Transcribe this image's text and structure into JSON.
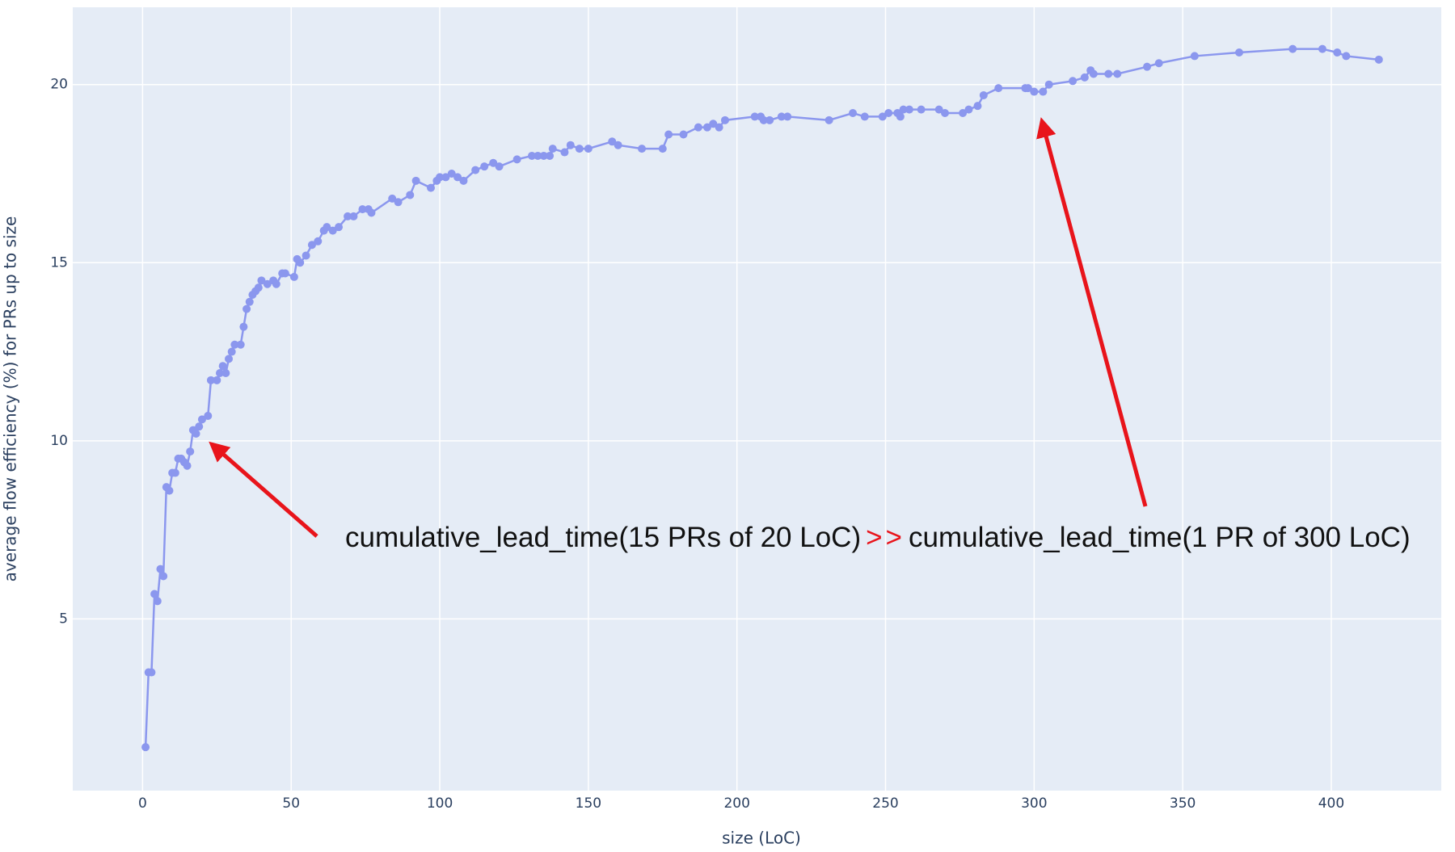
{
  "chart_data": {
    "type": "line",
    "x_label": "size (LoC)",
    "y_label": "average flow efficiency (%) for PRs up to size",
    "annotation": {
      "left": "cumulative_lead_time(15 PRs of 20 LoC)",
      "operator": ">>",
      "right": "cumulative_lead_time(1 PR of 300 LoC)"
    },
    "color": "#8b97ee",
    "x": [
      1,
      2,
      3,
      4,
      5,
      6,
      7,
      8,
      9,
      10,
      11,
      12,
      13,
      14,
      15,
      16,
      17,
      18,
      19,
      20,
      22,
      23,
      25,
      26,
      27,
      28,
      29,
      30,
      31,
      33,
      34,
      35,
      36,
      37,
      38,
      39,
      40,
      42,
      44,
      45,
      47,
      48,
      51,
      52,
      53,
      55,
      57,
      59,
      61,
      62,
      64,
      66,
      69,
      71,
      74,
      76,
      77,
      84,
      86,
      90,
      92,
      97,
      99,
      100,
      102,
      104,
      106,
      108,
      112,
      115,
      118,
      120,
      126,
      131,
      133,
      135,
      137,
      138,
      142,
      144,
      147,
      150,
      158,
      160,
      168,
      175,
      177,
      182,
      187,
      190,
      192,
      194,
      196,
      206,
      208,
      209,
      211,
      215,
      217,
      231,
      239,
      243,
      249,
      251,
      254,
      255,
      256,
      258,
      262,
      268,
      270,
      276,
      278,
      281,
      283,
      288,
      297,
      298,
      300,
      303,
      305,
      313,
      317,
      319,
      320,
      325,
      328,
      338,
      342,
      354,
      369,
      387,
      397,
      402,
      405,
      416
    ],
    "values": [
      1.4,
      3.5,
      3.5,
      5.7,
      5.5,
      6.4,
      6.2,
      8.7,
      8.6,
      9.1,
      9.1,
      9.5,
      9.5,
      9.4,
      9.3,
      9.7,
      10.3,
      10.2,
      10.4,
      10.6,
      10.7,
      11.7,
      11.7,
      11.9,
      12.1,
      11.9,
      12.3,
      12.5,
      12.7,
      12.7,
      13.2,
      13.7,
      13.9,
      14.1,
      14.2,
      14.3,
      14.5,
      14.4,
      14.5,
      14.4,
      14.7,
      14.7,
      14.6,
      15.1,
      15.0,
      15.2,
      15.5,
      15.6,
      15.9,
      16.0,
      15.9,
      16.0,
      16.3,
      16.3,
      16.5,
      16.5,
      16.4,
      16.8,
      16.7,
      16.9,
      17.3,
      17.1,
      17.3,
      17.4,
      17.4,
      17.5,
      17.4,
      17.3,
      17.6,
      17.7,
      17.8,
      17.7,
      17.9,
      18.0,
      18.0,
      18.0,
      18.0,
      18.2,
      18.1,
      18.3,
      18.2,
      18.2,
      18.4,
      18.3,
      18.2,
      18.2,
      18.6,
      18.6,
      18.8,
      18.8,
      18.9,
      18.8,
      19.0,
      19.1,
      19.1,
      19.0,
      19.0,
      19.1,
      19.1,
      19.0,
      19.2,
      19.1,
      19.1,
      19.2,
      19.2,
      19.1,
      19.3,
      19.3,
      19.3,
      19.3,
      19.2,
      19.2,
      19.3,
      19.4,
      19.7,
      19.9,
      19.9,
      19.9,
      19.8,
      19.8,
      20.0,
      20.1,
      20.2,
      20.4,
      20.3,
      20.3,
      20.3,
      20.5,
      20.6,
      20.8,
      20.9,
      21.0,
      21.0,
      20.9,
      20.8,
      20.7
    ],
    "xlim": [
      -23.5,
      437
    ],
    "ylim": [
      0.18,
      22.17
    ],
    "xticks": [
      0,
      50,
      100,
      150,
      200,
      250,
      300,
      350,
      400
    ],
    "yticks": [
      5,
      10,
      15,
      20
    ],
    "grid": true
  }
}
